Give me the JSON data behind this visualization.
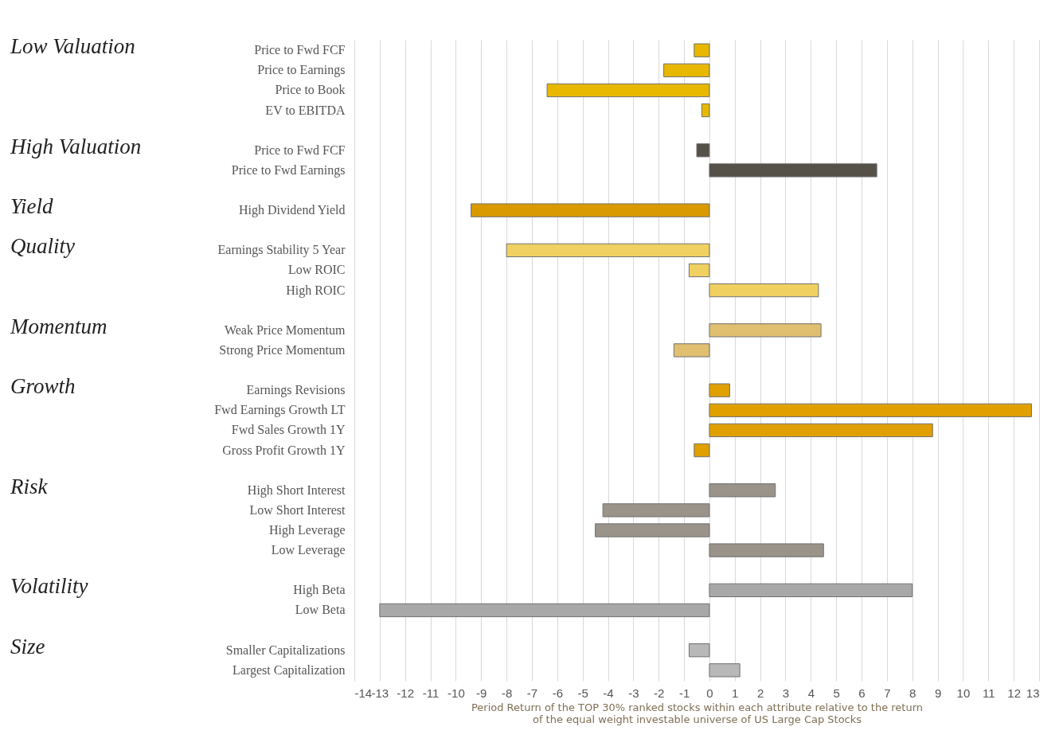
{
  "chart_data": {
    "type": "bar",
    "orientation": "horizontal",
    "categories": [
      "Price to Fwd FCF",
      "Price to Earnings",
      "Price to Book",
      "EV to EBITDA",
      null,
      "Price to Fwd FCF",
      "Price to Fwd Earnings",
      null,
      "High Dividend Yield",
      null,
      "Earnings Stability 5 Year",
      "Low ROIC",
      "High ROIC",
      null,
      "Weak Price Momentum",
      "Strong Price Momentum",
      null,
      "Earnings Revisions",
      "Fwd Earnings Growth LT",
      "Fwd Sales Growth 1Y",
      "Gross Profit Growth 1Y",
      null,
      "High Short Interest",
      "Low Short Interest",
      "High Leverage",
      "Low Leverage",
      null,
      "High Beta",
      "Low Beta",
      null,
      "Smaller Capitalizations",
      "Largest Capitalization"
    ],
    "values": [
      -0.6,
      -1.8,
      -6.4,
      -0.3,
      null,
      -0.5,
      6.6,
      null,
      -9.4,
      null,
      -8.0,
      -0.8,
      4.3,
      null,
      4.4,
      -1.4,
      null,
      0.8,
      12.7,
      8.8,
      -0.6,
      null,
      2.6,
      -4.2,
      -4.5,
      4.5,
      null,
      8.0,
      -13.0,
      null,
      -0.8,
      1.2
    ],
    "colors": [
      "#e8b800",
      "#e8b800",
      "#e8b800",
      "#e8b800",
      null,
      "#555048",
      "#555048",
      null,
      "#d99a00",
      null,
      "#f0d060",
      "#f0d060",
      "#f0d060",
      null,
      "#e0bf70",
      "#e0bf70",
      null,
      "#e0a000",
      "#e0a000",
      "#e0a000",
      "#e0a000",
      null,
      "#9a938a",
      "#9a938a",
      "#9a938a",
      "#9a938a",
      null,
      "#a8a8a8",
      "#a8a8a8",
      null,
      "#b8b8b8",
      "#b8b8b8"
    ],
    "xlim": [
      -14,
      13
    ],
    "xticks": [
      -14,
      -13,
      -12,
      -11,
      -10,
      -9,
      -8,
      -7,
      -6,
      -5,
      -4,
      -3,
      -2,
      -1,
      0,
      1,
      2,
      3,
      4,
      5,
      6,
      7,
      8,
      9,
      10,
      11,
      12,
      13
    ],
    "xlabel": "Period Return of the TOP 30% ranked stocks within each attribute relative to the return\nof the equal weight investable universe of US Large Cap Stocks",
    "annotations": [
      "Low Valuation",
      "High Valuation",
      "Yield",
      "Quality",
      "Momentum",
      "Growth",
      "Risk",
      "Volatility",
      "Size"
    ],
    "grid": "x"
  }
}
